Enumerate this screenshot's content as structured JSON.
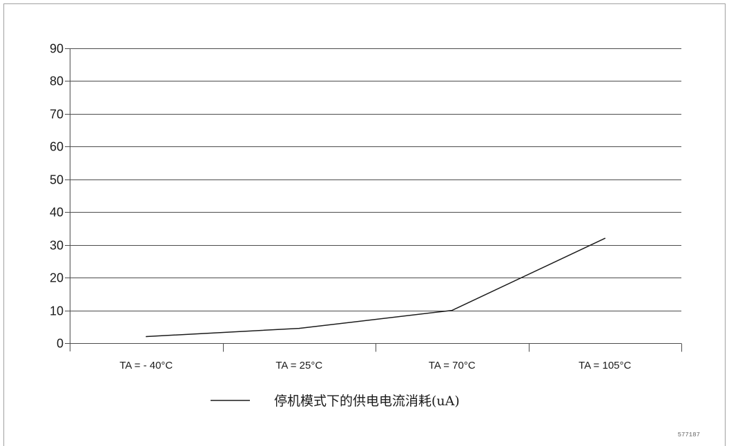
{
  "chart_data": {
    "type": "line",
    "categories": [
      "TA = - 40°C",
      "TA = 25°C",
      "TA = 70°C",
      "TA = 105°C"
    ],
    "series": [
      {
        "name": "停机模式下的供电电流消耗(uA)",
        "values": [
          2,
          4.5,
          10,
          32
        ]
      }
    ],
    "yticks": [
      0,
      10,
      20,
      30,
      40,
      50,
      60,
      70,
      80,
      90
    ],
    "ylim": [
      0,
      90
    ],
    "grid": true,
    "legend_position": "bottom-center",
    "colors": {
      "line": "#1a1a1a",
      "grid": "#4a4a4a",
      "frame": "#a0a0a0"
    }
  },
  "figure_id": "577187"
}
